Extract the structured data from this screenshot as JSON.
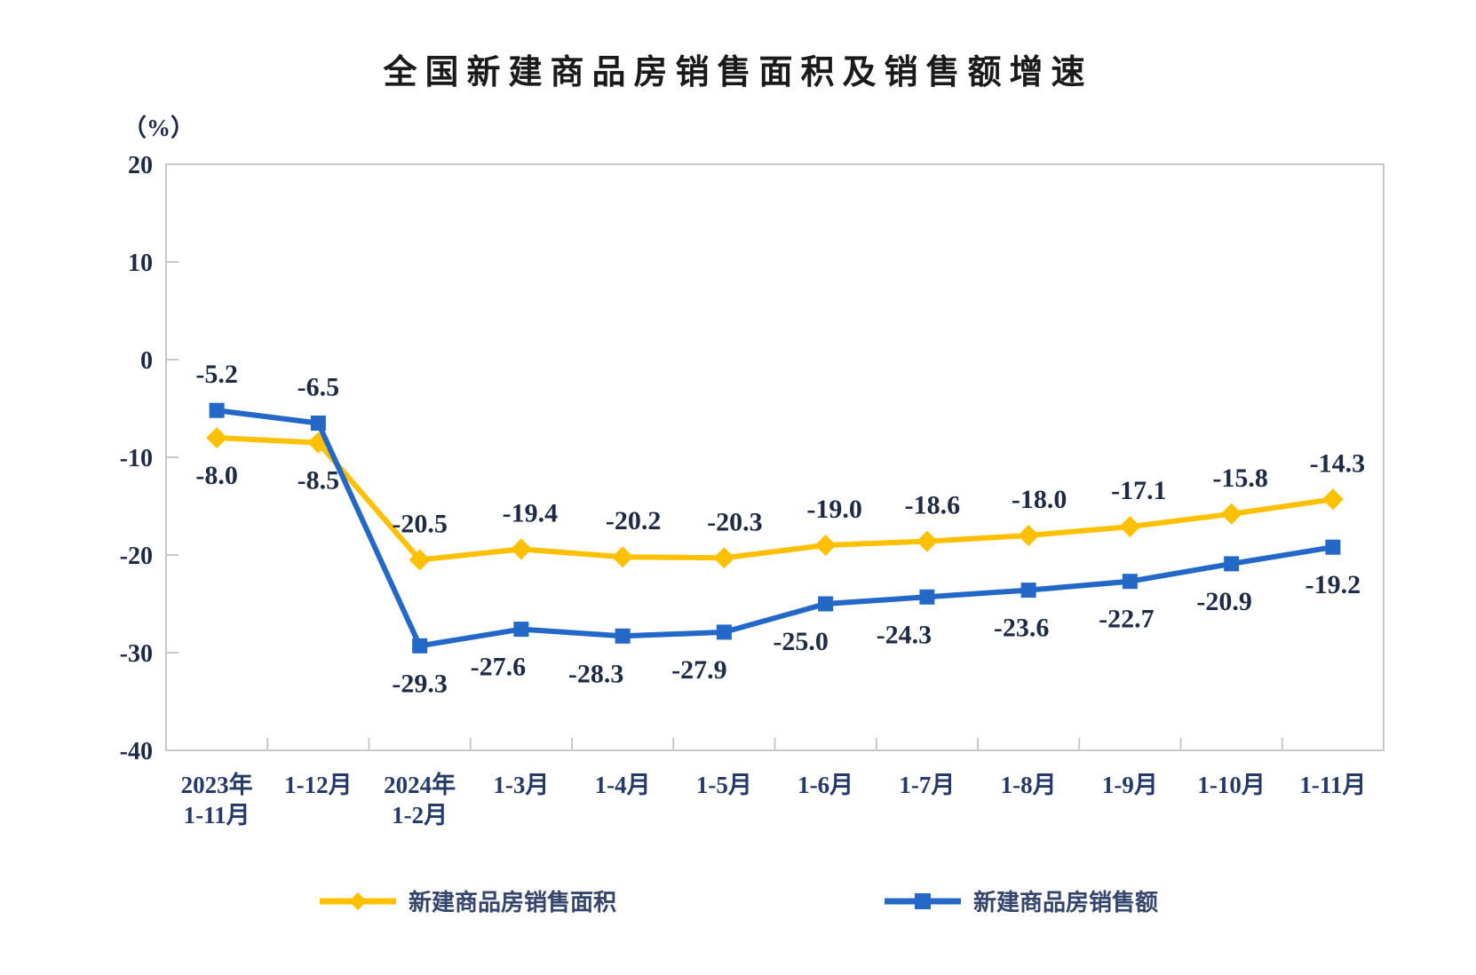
{
  "chart_data": {
    "type": "line",
    "title": "全国新建商品房销售面积及销售额增速",
    "unit_label": "（%）",
    "categories": [
      [
        "2023年",
        "1-11月"
      ],
      [
        "1-12月"
      ],
      [
        "2024年",
        "1-2月"
      ],
      [
        "1-3月"
      ],
      [
        "1-4月"
      ],
      [
        "1-5月"
      ],
      [
        "1-6月"
      ],
      [
        "1-7月"
      ],
      [
        "1-8月"
      ],
      [
        "1-9月"
      ],
      [
        "1-10月"
      ],
      [
        "1-11月"
      ]
    ],
    "y_axis": {
      "max": 20,
      "min": -40,
      "ticks": [
        20,
        10,
        0,
        -10,
        -20,
        -30,
        -40
      ]
    },
    "grid": false,
    "legend_position": "bottom",
    "colors": {
      "axis_border": "#C8C8C8",
      "tick_text": "#1E2A45",
      "x_label_text": "#243A68",
      "data_label_text": "#1F2A45"
    },
    "series": [
      {
        "name": "新建商品房销售面积",
        "color": "#FFC000",
        "marker": "diamond",
        "values": [
          -8.0,
          -8.5,
          -20.5,
          -19.4,
          -20.2,
          -20.3,
          -19.0,
          -18.6,
          -18.0,
          -17.1,
          -15.8,
          -14.3
        ],
        "label_sides": [
          "below",
          "below",
          "above",
          "above",
          "above",
          "above",
          "above",
          "above",
          "above",
          "above",
          "above",
          "above"
        ],
        "label_dx": [
          0,
          0,
          0,
          10,
          12,
          12,
          10,
          6,
          12,
          10,
          10,
          5
        ]
      },
      {
        "name": "新建商品房销售额",
        "color": "#2368C6",
        "marker": "square",
        "values": [
          -5.2,
          -6.5,
          -29.3,
          -27.6,
          -28.3,
          -27.9,
          -25.0,
          -24.3,
          -23.6,
          -22.7,
          -20.9,
          -19.2
        ],
        "label_sides": [
          "above",
          "above",
          "below",
          "below",
          "below",
          "below",
          "below",
          "below",
          "below",
          "below",
          "below",
          "below"
        ],
        "label_dx": [
          0,
          0,
          0,
          -26,
          -30,
          -28,
          -28,
          -26,
          -8,
          -4,
          -8,
          0
        ]
      }
    ]
  }
}
